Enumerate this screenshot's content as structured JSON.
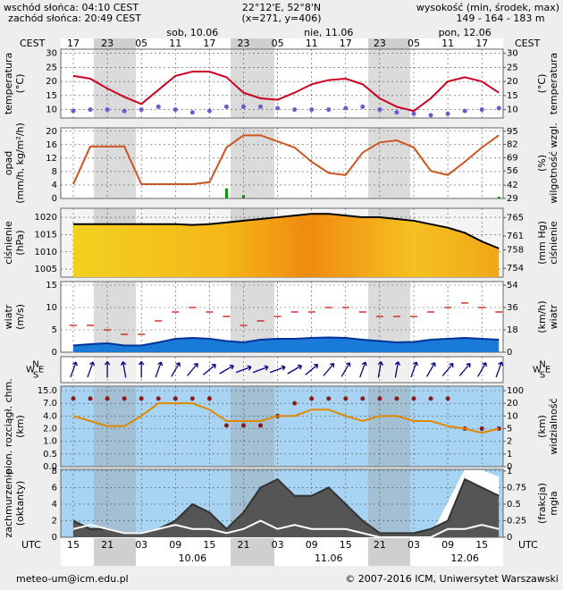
{
  "header": {
    "sunrise": "wschód słońca: 04:10 CEST",
    "sunset": "zachód słońca: 20:49 CEST",
    "coords": "22°12'E, 52°8'N",
    "grid": "(x=271, y=406)",
    "elevation_title": "wysokość (min, środek, max)",
    "elevation": "149 - 164 - 183 m"
  },
  "time_axis": {
    "top_zone": "CEST",
    "top_hours": [
      "17",
      "23",
      "05",
      "11",
      "17",
      "23",
      "05",
      "11",
      "17",
      "23",
      "05",
      "11",
      "17"
    ],
    "top_days": [
      "sob, 10.06",
      "nie, 11.06",
      "pon, 12.06"
    ],
    "bottom_zone": "UTC",
    "bottom_hours": [
      "15",
      "21",
      "03",
      "09",
      "15",
      "21",
      "03",
      "09",
      "15",
      "21",
      "03",
      "09",
      "15"
    ],
    "bottom_days": [
      "10.06",
      "11.06",
      "12.06"
    ]
  },
  "chart_data": [
    {
      "type": "line",
      "ylabel": [
        "temperatura",
        "(°C)"
      ],
      "y2label": [
        "(°C)",
        "temperatura"
      ],
      "ylim": [
        7,
        31.5
      ],
      "yticks": [
        10,
        15,
        20,
        25,
        30
      ],
      "y2lim": [
        7,
        31.5
      ],
      "y2ticks": [
        10,
        15,
        20,
        25,
        30
      ],
      "y2color": "#000000",
      "background": "#ffffff",
      "series": [
        {
          "style": "line",
          "color": "#cc0022",
          "values": [
            22,
            21,
            17.5,
            14.5,
            12,
            17,
            22,
            23.5,
            23.5,
            21.5,
            16,
            14,
            13.5,
            16,
            19,
            20.5,
            21,
            19,
            14,
            11,
            9.5,
            14,
            20,
            21.5,
            20,
            16
          ]
        },
        {
          "style": "dots",
          "color": "#6a5acd",
          "values": [
            9.5,
            10,
            10,
            9.5,
            10,
            11,
            10,
            9,
            9.5,
            11,
            11,
            11,
            10.5,
            10,
            10,
            10,
            10.5,
            11,
            10,
            9,
            8.5,
            8,
            8.5,
            9.5,
            10,
            10.5
          ]
        }
      ]
    },
    {
      "type": "line",
      "ylabel": [
        "opad",
        "(mm/h, kg/m²/h)"
      ],
      "y2label": [
        "(%)",
        "wilgotność wzgl."
      ],
      "ylim": [
        0,
        21
      ],
      "yticks": [
        0,
        4,
        8,
        12,
        16,
        20
      ],
      "y2lim": [
        29,
        98.3
      ],
      "y2ticks": [
        29,
        42,
        56,
        69,
        82,
        95
      ],
      "y2color": "#b04000",
      "background": "#ffffff",
      "series": [
        {
          "style": "bars",
          "color": "#009900",
          "values": [
            0,
            0,
            0,
            0,
            0,
            0,
            0,
            0,
            0,
            3,
            1,
            0,
            0,
            0,
            0,
            0,
            0,
            0,
            0,
            0,
            0,
            0,
            0,
            0,
            0,
            0.5
          ]
        },
        {
          "style": "line",
          "axis": "y2",
          "color": "#cc5522",
          "values": [
            43,
            80,
            80,
            80,
            43,
            43,
            43,
            43,
            45,
            79,
            91,
            91,
            85,
            79,
            65,
            54,
            52,
            74,
            84,
            86,
            79,
            56,
            52,
            65,
            79,
            91
          ]
        }
      ]
    },
    {
      "type": "line",
      "ylabel": [
        "ciśnienie",
        "(hPa)"
      ],
      "y2label": [
        "(mm Hg)",
        "ciśnienie"
      ],
      "ylim": [
        1002.7,
        1022.6
      ],
      "yticks": [
        1005,
        1010,
        1015,
        1020
      ],
      "y2lim": [
        752.1,
        767
      ],
      "y2ticks": [
        754,
        758,
        761,
        765
      ],
      "y2color": "#000000",
      "background": "#f4f4f4",
      "series": [
        {
          "style": "area",
          "fill": "url(#pgrad)",
          "color": "#000000",
          "values": [
            1018,
            1018,
            1018,
            1018,
            1018,
            1018,
            1018,
            1017.8,
            1018,
            1018.5,
            1019,
            1019.5,
            1020,
            1020.5,
            1021,
            1021,
            1020.5,
            1020,
            1020,
            1019.5,
            1019,
            1018,
            1017,
            1015.5,
            1013,
            1011
          ]
        }
      ]
    },
    {
      "type": "line",
      "ylabel": [
        "wiatr",
        "(m/s)"
      ],
      "y2label": [
        "(km/h)",
        "wiatr"
      ],
      "ylim": [
        0,
        15.8
      ],
      "yticks": [
        0,
        5,
        10,
        15
      ],
      "y2lim": [
        0,
        56.9
      ],
      "y2ticks": [
        0,
        18,
        36,
        54
      ],
      "y2color": "#000000",
      "background": "#ffffff",
      "series": [
        {
          "style": "area",
          "fill": "#1a7ad8",
          "color": "#003399",
          "values": [
            1.5,
            1.8,
            2,
            1.5,
            1.5,
            2.2,
            3,
            3.2,
            3,
            2.5,
            2.2,
            2.8,
            3,
            3,
            3.2,
            3.3,
            3.2,
            2.8,
            2.5,
            2.2,
            2.3,
            2.8,
            3,
            3.2,
            3,
            2.8
          ]
        },
        {
          "style": "dashes",
          "color": "#cc0000",
          "values": [
            6,
            6,
            5,
            4,
            4,
            7,
            9,
            10,
            9,
            8,
            6,
            7,
            8,
            9,
            9,
            10,
            10,
            9,
            8,
            8,
            8,
            9,
            10,
            11,
            10,
            9
          ]
        }
      ]
    },
    {
      "type": "arrows",
      "compass": [
        "N",
        "W",
        "E",
        "S"
      ],
      "color": "#000080",
      "values": [
        200,
        200,
        180,
        170,
        180,
        200,
        210,
        220,
        230,
        240,
        250,
        250,
        250,
        240,
        230,
        220,
        210,
        200,
        190,
        190,
        200,
        210,
        220,
        220,
        210,
        200
      ]
    },
    {
      "type": "line",
      "yscale": "ticks",
      "ylabel": [
        "pion. rozciągł. chm.",
        "(km)"
      ],
      "y2label": [
        "(km)",
        "widzialność"
      ],
      "yticks": [
        {
          "value": 0,
          "label": "0.0"
        },
        {
          "value": 0.5,
          "label": "0.5"
        },
        {
          "value": 1,
          "label": "1.0"
        },
        {
          "value": 2,
          "label": "2.0"
        },
        {
          "value": 4,
          "label": "4.0"
        },
        {
          "value": 7,
          "label": "7.0"
        },
        {
          "value": 15,
          "label": "15.0"
        }
      ],
      "y2ticks": [
        0,
        1,
        2,
        5,
        10,
        20,
        100
      ],
      "y2color": "#cc6600",
      "background": "#a8d4f4",
      "series": [
        {
          "style": "dots",
          "color": "#8b1a1a",
          "values": [
            10,
            10,
            10,
            10,
            10,
            10,
            10,
            10,
            10,
            2.5,
            2.5,
            2.5,
            4,
            7,
            10,
            10,
            10,
            10,
            10,
            10,
            10,
            10,
            10,
            2,
            2,
            2
          ]
        },
        {
          "style": "line",
          "axis": "y2",
          "color": "#e08800",
          "values": [
            10,
            8,
            6,
            6,
            10,
            20,
            20,
            20,
            15,
            8,
            8,
            8,
            10,
            10,
            15,
            15,
            10,
            8,
            10,
            10,
            8,
            8,
            6,
            5,
            4,
            5
          ]
        }
      ]
    },
    {
      "type": "line",
      "ylabel": [
        "zachmurzenie",
        "(oktanty)"
      ],
      "y2label": [
        "(frakcja)",
        "mgła"
      ],
      "ylim": [
        0,
        8.2
      ],
      "yticks": [
        0,
        2,
        4,
        6,
        8
      ],
      "y2lim": [
        0,
        1.025
      ],
      "y2ticks": [
        0,
        0.25,
        0.5,
        0.75,
        1
      ],
      "y2color": "#cc6600",
      "background": "#a8d4f4",
      "series": [
        {
          "style": "area",
          "axis": "y2",
          "fill": "#ffffff",
          "color": "#ffffff",
          "values": [
            0,
            0,
            0,
            0,
            0,
            0,
            0,
            0,
            0,
            0,
            0,
            0,
            0,
            0,
            0,
            0,
            0,
            0,
            0,
            0,
            0,
            0,
            0.5,
            1,
            1,
            0.9
          ]
        },
        {
          "style": "area",
          "fill": "#555555",
          "color": "#333333",
          "values": [
            2,
            1,
            1,
            0.5,
            0.5,
            1,
            2,
            4,
            3,
            1,
            3,
            6,
            7,
            5,
            5,
            6,
            4,
            2,
            0.5,
            0.5,
            0.5,
            1,
            2,
            7,
            6,
            5
          ]
        },
        {
          "style": "line",
          "color": "#ffffff",
          "values": [
            1,
            1.5,
            1,
            0.5,
            0.5,
            1,
            1.5,
            1,
            1,
            0.5,
            1,
            2,
            1,
            1.5,
            1,
            1,
            1,
            0.5,
            0,
            0,
            0,
            0,
            1,
            1,
            1.5,
            1
          ]
        }
      ]
    }
  ],
  "footer": {
    "email": "meteo-um@icm.edu.pl",
    "copyright": "© 2007-2016 ICM, Uniwersytet Warszawski"
  }
}
